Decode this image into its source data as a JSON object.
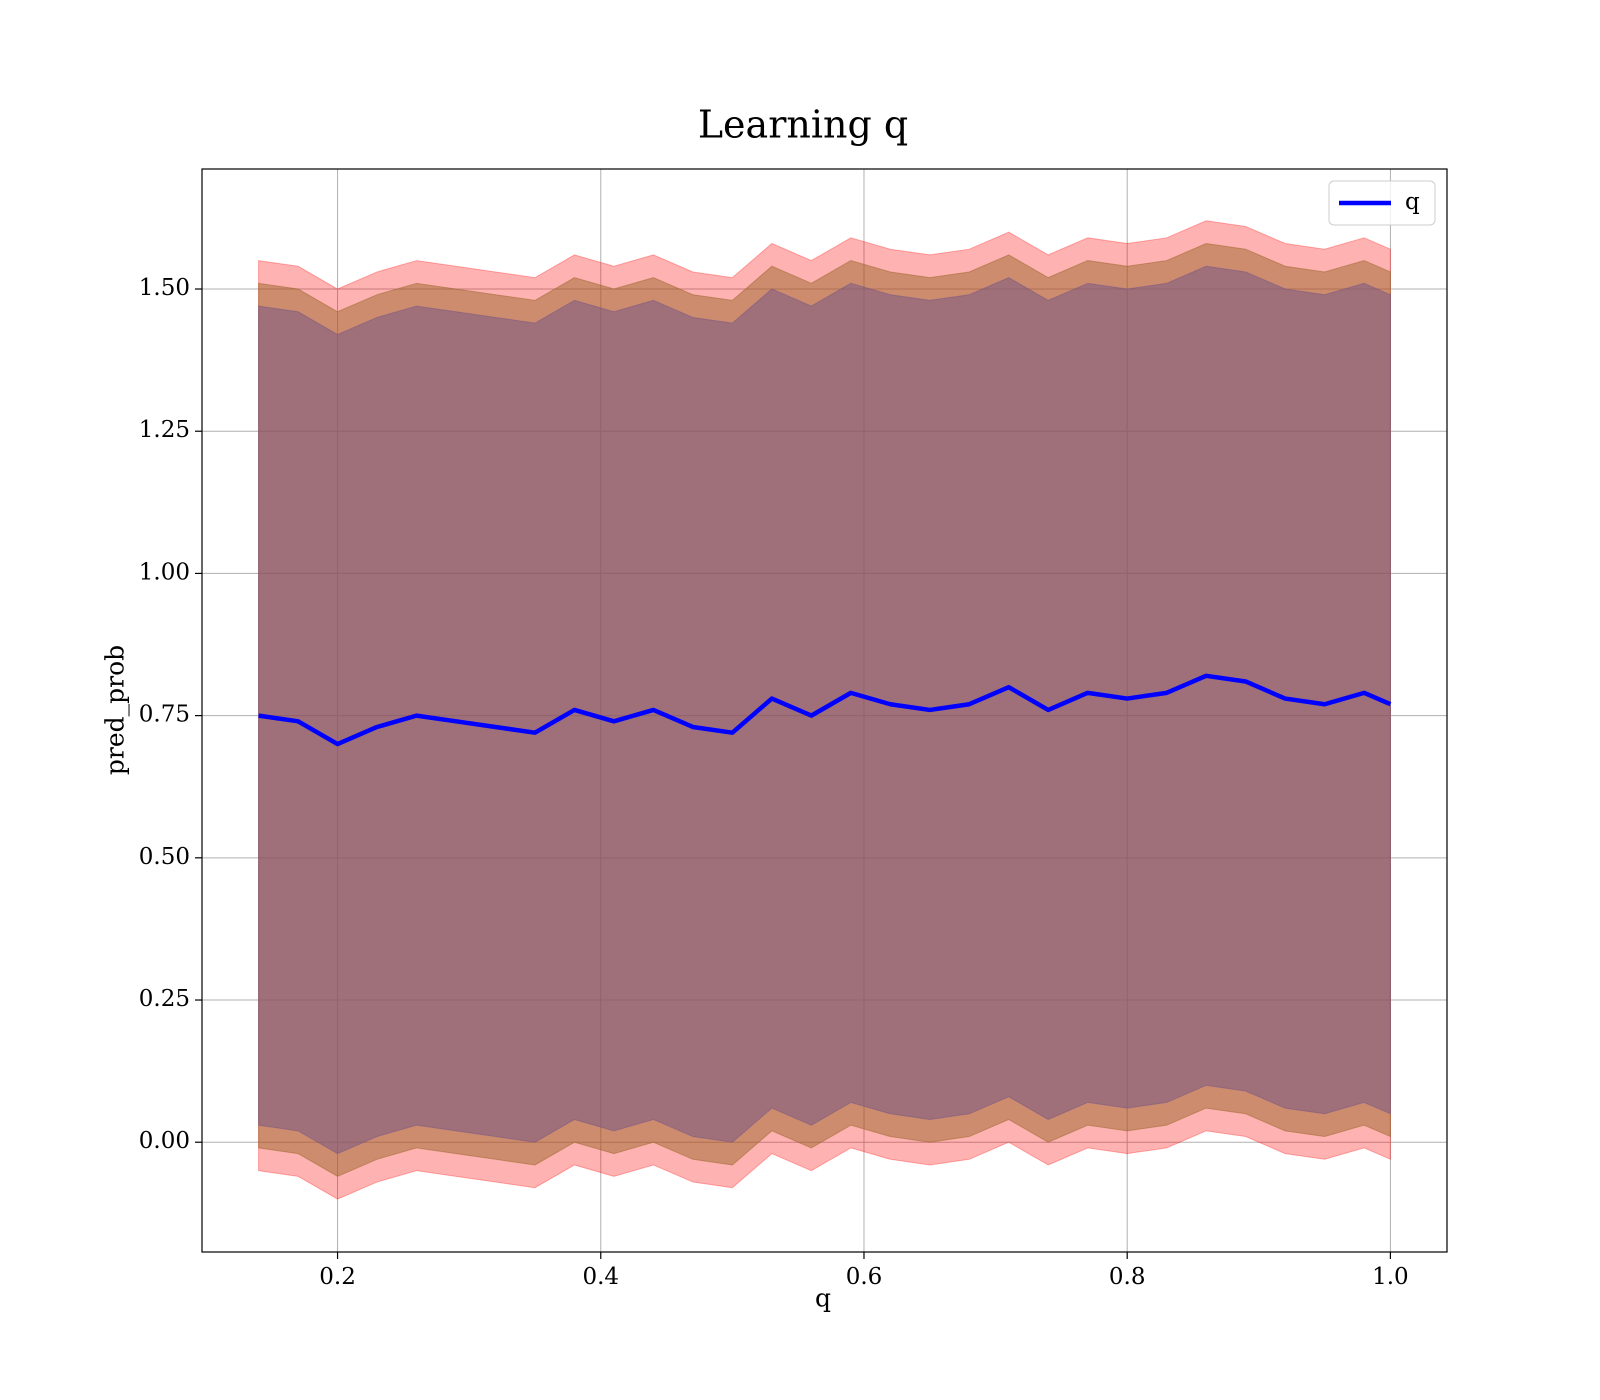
{
  "chart_data": {
    "type": "line",
    "title": "Learning q",
    "xlabel": "q",
    "ylabel": "pred_prob",
    "x": [
      0.14,
      0.17,
      0.2,
      0.23,
      0.26,
      0.29,
      0.32,
      0.35,
      0.38,
      0.41,
      0.44,
      0.47,
      0.5,
      0.53,
      0.56,
      0.59,
      0.62,
      0.65,
      0.68,
      0.71,
      0.74,
      0.77,
      0.8,
      0.83,
      0.86,
      0.89,
      0.92,
      0.95,
      0.98,
      1.0
    ],
    "series": [
      {
        "name": "q",
        "color": "#0000ff",
        "values": [
          0.75,
          0.74,
          0.7,
          0.73,
          0.75,
          0.74,
          0.73,
          0.72,
          0.76,
          0.74,
          0.76,
          0.73,
          0.72,
          0.78,
          0.75,
          0.79,
          0.77,
          0.76,
          0.77,
          0.8,
          0.76,
          0.79,
          0.78,
          0.79,
          0.82,
          0.81,
          0.78,
          0.77,
          0.79,
          0.77
        ]
      }
    ],
    "bands": [
      {
        "color": "#ff0000",
        "alpha": 0.3,
        "lower": [
          -0.05,
          -0.06,
          -0.1,
          -0.07,
          -0.05,
          -0.06,
          -0.07,
          -0.08,
          -0.04,
          -0.06,
          -0.04,
          -0.07,
          -0.08,
          -0.02,
          -0.05,
          -0.01,
          -0.03,
          -0.04,
          -0.03,
          0.0,
          -0.04,
          -0.01,
          -0.02,
          -0.01,
          0.02,
          0.01,
          -0.02,
          -0.03,
          -0.01,
          -0.03
        ],
        "upper": [
          1.55,
          1.54,
          1.5,
          1.53,
          1.55,
          1.54,
          1.53,
          1.52,
          1.56,
          1.54,
          1.56,
          1.53,
          1.52,
          1.58,
          1.55,
          1.59,
          1.57,
          1.56,
          1.57,
          1.6,
          1.56,
          1.59,
          1.58,
          1.59,
          1.62,
          1.61,
          1.58,
          1.57,
          1.59,
          1.57
        ]
      },
      {
        "color": "#9b662a",
        "alpha": 0.5,
        "lower": [
          -0.01,
          -0.02,
          -0.06,
          -0.03,
          -0.01,
          -0.02,
          -0.03,
          -0.04,
          0.0,
          -0.02,
          0.0,
          -0.03,
          -0.04,
          0.02,
          -0.01,
          0.03,
          0.01,
          0.0,
          0.01,
          0.04,
          0.0,
          0.03,
          0.02,
          0.03,
          0.06,
          0.05,
          0.02,
          0.01,
          0.03,
          0.01
        ],
        "upper": [
          1.51,
          1.5,
          1.46,
          1.49,
          1.51,
          1.5,
          1.49,
          1.48,
          1.52,
          1.5,
          1.52,
          1.49,
          1.48,
          1.54,
          1.51,
          1.55,
          1.53,
          1.52,
          1.53,
          1.56,
          1.52,
          1.55,
          1.54,
          1.55,
          1.58,
          1.57,
          1.54,
          1.53,
          1.55,
          1.53
        ]
      },
      {
        "color": "#735486",
        "alpha": 0.5,
        "lower": [
          0.03,
          0.02,
          -0.02,
          0.01,
          0.03,
          0.02,
          0.01,
          0.0,
          0.04,
          0.02,
          0.04,
          0.01,
          0.0,
          0.06,
          0.03,
          0.07,
          0.05,
          0.04,
          0.05,
          0.08,
          0.04,
          0.07,
          0.06,
          0.07,
          0.1,
          0.09,
          0.06,
          0.05,
          0.07,
          0.05
        ],
        "upper": [
          1.47,
          1.46,
          1.42,
          1.45,
          1.47,
          1.46,
          1.45,
          1.44,
          1.48,
          1.46,
          1.48,
          1.45,
          1.44,
          1.5,
          1.47,
          1.51,
          1.49,
          1.48,
          1.49,
          1.52,
          1.48,
          1.51,
          1.5,
          1.51,
          1.54,
          1.53,
          1.5,
          1.49,
          1.51,
          1.49
        ]
      }
    ],
    "xlim": [
      0.097,
      1.043
    ],
    "ylim": [
      -0.193,
      1.711
    ],
    "xticks": [
      0.2,
      0.4,
      0.6,
      0.8,
      {
        "value": 1.0,
        "label": "1.0"
      }
    ],
    "yticks": [
      {
        "value": 0.0,
        "label": "0.00"
      },
      {
        "value": 0.25,
        "label": "0.25"
      },
      {
        "value": 0.5,
        "label": "0.50"
      },
      {
        "value": 0.75,
        "label": "0.75"
      },
      {
        "value": 1.0,
        "label": "1.00"
      },
      {
        "value": 1.25,
        "label": "1.25"
      },
      {
        "value": 1.5,
        "label": "1.50"
      }
    ],
    "grid": true,
    "legend": "upper right"
  }
}
